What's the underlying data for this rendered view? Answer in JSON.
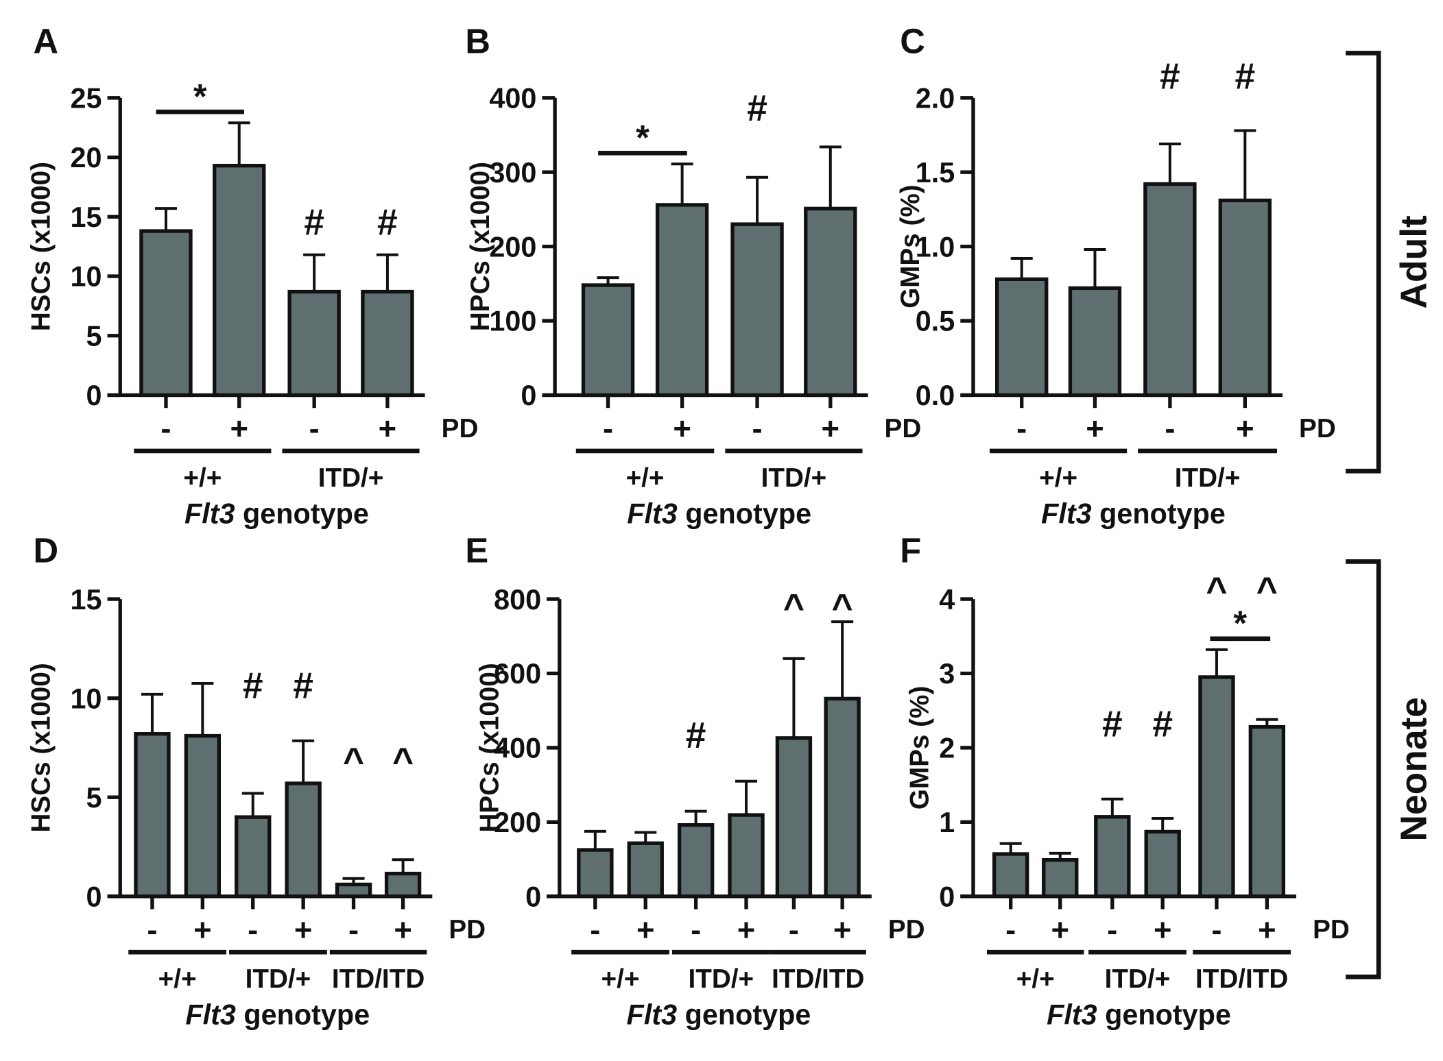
{
  "colors": {
    "bar": "#5f6f70",
    "ink": "#111111"
  },
  "pd_label": "PD",
  "xlabel_italic": "Flt3",
  "xlabel_rest": " genotype",
  "brackets": [
    {
      "label": "Adult",
      "panels": [
        "A",
        "B",
        "C"
      ]
    },
    {
      "label": "Neonate",
      "panels": [
        "D",
        "E",
        "F"
      ]
    }
  ],
  "chart_data": [
    {
      "panel": "A",
      "type": "bar",
      "ylabel": "HSCs (x1000)",
      "ylim": [
        0,
        25
      ],
      "yticks": [
        0,
        5,
        10,
        15,
        20,
        25
      ],
      "groups": [
        "+/+",
        "ITD/+"
      ],
      "pd": [
        "-",
        "+",
        "-",
        "+"
      ],
      "values": [
        13.8,
        19.3,
        8.7,
        8.7
      ],
      "errors": [
        1.9,
        3.6,
        3.1,
        3.1
      ],
      "marks": [
        {
          "bar": 2,
          "symbol": "#"
        },
        {
          "bar": 3,
          "symbol": "#"
        }
      ],
      "sig": [
        {
          "bars": [
            0,
            1
          ],
          "symbol": "*"
        }
      ]
    },
    {
      "panel": "B",
      "type": "bar",
      "ylabel": "HPCs (x1000)",
      "ylim": [
        0,
        400
      ],
      "yticks": [
        0,
        100,
        200,
        300,
        400
      ],
      "groups": [
        "+/+",
        "ITD/+"
      ],
      "pd": [
        "-",
        "+",
        "-",
        "+"
      ],
      "values": [
        148,
        256,
        230,
        251
      ],
      "errors": [
        10,
        55,
        63,
        83
      ],
      "marks": [
        {
          "bar": 2,
          "symbol": "#",
          "offset": 1.0
        }
      ],
      "sig": [
        {
          "bars": [
            0,
            1
          ],
          "symbol": "*"
        }
      ]
    },
    {
      "panel": "C",
      "type": "bar",
      "ylabel": "GMPs (%)",
      "ylim": [
        0,
        2.0
      ],
      "yticks": [
        "0.0",
        "0.5",
        "1.0",
        "1.5",
        "2.0"
      ],
      "groups": [
        "+/+",
        "ITD/+"
      ],
      "pd": [
        "-",
        "+",
        "-",
        "+"
      ],
      "values": [
        0.78,
        0.72,
        1.42,
        1.31
      ],
      "errors": [
        0.14,
        0.26,
        0.27,
        0.47
      ],
      "marks": [
        {
          "bar": 2,
          "symbol": "#",
          "top": true
        },
        {
          "bar": 3,
          "symbol": "#",
          "top": true
        }
      ],
      "sig": []
    },
    {
      "panel": "D",
      "type": "bar",
      "ylabel": "HSCs (x1000)",
      "ylim": [
        0,
        15
      ],
      "yticks": [
        0,
        5,
        10,
        15
      ],
      "groups": [
        "+/+",
        "ITD/+",
        "ITD/ITD"
      ],
      "pd": [
        "-",
        "+",
        "-",
        "+",
        "-",
        "+"
      ],
      "values": [
        8.2,
        8.1,
        4.0,
        5.7,
        0.6,
        1.15
      ],
      "errors": [
        2.0,
        2.65,
        1.2,
        2.15,
        0.3,
        0.7
      ],
      "marks": [
        {
          "bar": 2,
          "symbol": "#",
          "level": 10.0
        },
        {
          "bar": 3,
          "symbol": "#",
          "level": 10.0
        },
        {
          "bar": 4,
          "symbol": "^",
          "level": 6.2
        },
        {
          "bar": 5,
          "symbol": "^",
          "level": 6.2
        }
      ],
      "sig": []
    },
    {
      "panel": "E",
      "type": "bar",
      "ylabel": "HPCs (x1000)",
      "ylim": [
        0,
        800
      ],
      "yticks": [
        0,
        200,
        400,
        600,
        800
      ],
      "groups": [
        "+/+",
        "ITD/+",
        "ITD/ITD"
      ],
      "pd": [
        "-",
        "+",
        "-",
        "+",
        "-",
        "+"
      ],
      "values": [
        125,
        143,
        192,
        219,
        426,
        532
      ],
      "errors": [
        50,
        29,
        37,
        91,
        214,
        207
      ],
      "marks": [
        {
          "bar": 2,
          "symbol": "#",
          "level": 400
        },
        {
          "bar": 4,
          "symbol": "^",
          "level": 745
        },
        {
          "bar": 5,
          "symbol": "^",
          "level": 745
        }
      ],
      "sig": []
    },
    {
      "panel": "F",
      "type": "bar",
      "ylabel": "GMPs (%)",
      "ylim": [
        0,
        4
      ],
      "yticks": [
        0,
        1,
        2,
        3,
        4
      ],
      "groups": [
        "+/+",
        "ITD/+",
        "ITD/ITD"
      ],
      "pd": [
        "-",
        "+",
        "-",
        "+",
        "-",
        "+"
      ],
      "values": [
        0.57,
        0.49,
        1.07,
        0.87,
        2.95,
        2.28
      ],
      "errors": [
        0.14,
        0.09,
        0.24,
        0.18,
        0.37,
        0.1
      ],
      "marks": [
        {
          "bar": 2,
          "symbol": "#",
          "level": 2.15
        },
        {
          "bar": 3,
          "symbol": "#",
          "level": 2.15
        },
        {
          "bar": 4,
          "symbol": "^",
          "level": 3.95
        },
        {
          "bar": 5,
          "symbol": "^",
          "level": 3.95
        }
      ],
      "sig": [
        {
          "bars": [
            4,
            5
          ],
          "symbol": "*"
        }
      ]
    }
  ]
}
